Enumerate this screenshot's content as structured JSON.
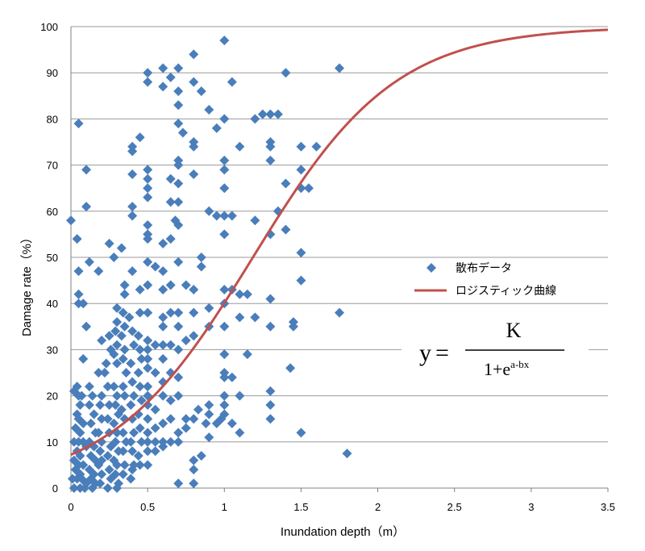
{
  "chart_data": {
    "type": "scatter",
    "xlabel": "Inundation depth（m）",
    "ylabel": "Damage rate（%）",
    "xlim": [
      0,
      3.5
    ],
    "ylim": [
      0,
      100
    ],
    "x_ticks": [
      "0",
      "0.5",
      "1",
      "1.5",
      "2",
      "2.5",
      "3",
      "3.5"
    ],
    "y_ticks": [
      "0",
      "10",
      "20",
      "30",
      "40",
      "50",
      "60",
      "70",
      "80",
      "90",
      "100"
    ],
    "grid": "horizontal",
    "legend_position": "right-middle",
    "colors": {
      "scatter": "#4a7ebb",
      "curve": "#c0504d",
      "grid": "#9a9a9a"
    },
    "series": [
      {
        "name": "散布データ",
        "kind": "scatter",
        "marker": "diamond",
        "points": [
          [
            0,
            58
          ],
          [
            0.02,
            21
          ],
          [
            0.05,
            79
          ],
          [
            0.04,
            54
          ],
          [
            0.05,
            47
          ],
          [
            0.05,
            42
          ],
          [
            0.05,
            40
          ],
          [
            0.08,
            40
          ],
          [
            0.1,
            69
          ],
          [
            0.1,
            61
          ],
          [
            0.1,
            35
          ],
          [
            0.08,
            28
          ],
          [
            0.12,
            49
          ],
          [
            0.04,
            22
          ],
          [
            0.05,
            20
          ],
          [
            0.07,
            20
          ],
          [
            0.06,
            18
          ],
          [
            0.04,
            16
          ],
          [
            0.05,
            15
          ],
          [
            0.08,
            14
          ],
          [
            0.03,
            13
          ],
          [
            0.06,
            12
          ],
          [
            0.02,
            10
          ],
          [
            0.05,
            10
          ],
          [
            0.08,
            10
          ],
          [
            0.1,
            9
          ],
          [
            0.04,
            8
          ],
          [
            0.06,
            7
          ],
          [
            0.02,
            6
          ],
          [
            0.05,
            5
          ],
          [
            0.08,
            5
          ],
          [
            0.03,
            4
          ],
          [
            0.06,
            3
          ],
          [
            0.01,
            2
          ],
          [
            0.04,
            2
          ],
          [
            0.07,
            2
          ],
          [
            0.1,
            1
          ],
          [
            0.02,
            0
          ],
          [
            0.06,
            0
          ],
          [
            0.09,
            0
          ],
          [
            0.12,
            22
          ],
          [
            0.14,
            20
          ],
          [
            0.12,
            18
          ],
          [
            0.15,
            16
          ],
          [
            0.13,
            14
          ],
          [
            0.16,
            12
          ],
          [
            0.12,
            10
          ],
          [
            0.15,
            9
          ],
          [
            0.13,
            7
          ],
          [
            0.16,
            6
          ],
          [
            0.12,
            4
          ],
          [
            0.15,
            3
          ],
          [
            0.13,
            2
          ],
          [
            0.16,
            1
          ],
          [
            0.14,
            0
          ],
          [
            0.18,
            47
          ],
          [
            0.2,
            32
          ],
          [
            0.18,
            25
          ],
          [
            0.2,
            20
          ],
          [
            0.19,
            18
          ],
          [
            0.2,
            15
          ],
          [
            0.18,
            12
          ],
          [
            0.2,
            10
          ],
          [
            0.19,
            8
          ],
          [
            0.2,
            6
          ],
          [
            0.18,
            5
          ],
          [
            0.2,
            3
          ],
          [
            0.19,
            1
          ],
          [
            0.23,
            27
          ],
          [
            0.22,
            25
          ],
          [
            0.24,
            22
          ],
          [
            0.25,
            53
          ],
          [
            0.25,
            33
          ],
          [
            0.26,
            30
          ],
          [
            0.25,
            18
          ],
          [
            0.24,
            15
          ],
          [
            0.25,
            12
          ],
          [
            0.26,
            9
          ],
          [
            0.24,
            7
          ],
          [
            0.25,
            4
          ],
          [
            0.26,
            2
          ],
          [
            0.24,
            0
          ],
          [
            0.28,
            50
          ],
          [
            0.3,
            39
          ],
          [
            0.3,
            36
          ],
          [
            0.29,
            34
          ],
          [
            0.3,
            31
          ],
          [
            0.28,
            29
          ],
          [
            0.3,
            27
          ],
          [
            0.28,
            22
          ],
          [
            0.3,
            20
          ],
          [
            0.29,
            18
          ],
          [
            0.31,
            16
          ],
          [
            0.28,
            14
          ],
          [
            0.3,
            12
          ],
          [
            0.29,
            10
          ],
          [
            0.31,
            8
          ],
          [
            0.28,
            6
          ],
          [
            0.3,
            5
          ],
          [
            0.29,
            3
          ],
          [
            0.31,
            1
          ],
          [
            0.3,
            0
          ],
          [
            0.33,
            52
          ],
          [
            0.35,
            44
          ],
          [
            0.35,
            42
          ],
          [
            0.34,
            38
          ],
          [
            0.35,
            35
          ],
          [
            0.33,
            33
          ],
          [
            0.35,
            30
          ],
          [
            0.34,
            28
          ],
          [
            0.36,
            25
          ],
          [
            0.34,
            22
          ],
          [
            0.35,
            20
          ],
          [
            0.33,
            17
          ],
          [
            0.35,
            15
          ],
          [
            0.34,
            12
          ],
          [
            0.36,
            10
          ],
          [
            0.34,
            8
          ],
          [
            0.35,
            5
          ],
          [
            0.34,
            3
          ],
          [
            0.4,
            74
          ],
          [
            0.4,
            73
          ],
          [
            0.4,
            68
          ],
          [
            0.4,
            61
          ],
          [
            0.4,
            59
          ],
          [
            0.4,
            47
          ],
          [
            0.38,
            37
          ],
          [
            0.4,
            34
          ],
          [
            0.41,
            31
          ],
          [
            0.39,
            27
          ],
          [
            0.4,
            23
          ],
          [
            0.41,
            20
          ],
          [
            0.39,
            18
          ],
          [
            0.4,
            15
          ],
          [
            0.41,
            12
          ],
          [
            0.39,
            10
          ],
          [
            0.4,
            8
          ],
          [
            0.41,
            5
          ],
          [
            0.4,
            4
          ],
          [
            0.39,
            2
          ],
          [
            0.45,
            76
          ],
          [
            0.45,
            43
          ],
          [
            0.45,
            38
          ],
          [
            0.44,
            33
          ],
          [
            0.45,
            30
          ],
          [
            0.46,
            28
          ],
          [
            0.44,
            25
          ],
          [
            0.45,
            22
          ],
          [
            0.46,
            19
          ],
          [
            0.44,
            16
          ],
          [
            0.45,
            13
          ],
          [
            0.46,
            10
          ],
          [
            0.44,
            7
          ],
          [
            0.45,
            5
          ],
          [
            0.5,
            90
          ],
          [
            0.5,
            88
          ],
          [
            0.5,
            69
          ],
          [
            0.5,
            67
          ],
          [
            0.5,
            65
          ],
          [
            0.5,
            63
          ],
          [
            0.5,
            57
          ],
          [
            0.5,
            55
          ],
          [
            0.5,
            54
          ],
          [
            0.5,
            49
          ],
          [
            0.5,
            44
          ],
          [
            0.5,
            38
          ],
          [
            0.5,
            32
          ],
          [
            0.5,
            30
          ],
          [
            0.5,
            28
          ],
          [
            0.5,
            26
          ],
          [
            0.5,
            22
          ],
          [
            0.5,
            20
          ],
          [
            0.5,
            18
          ],
          [
            0.5,
            15
          ],
          [
            0.5,
            12
          ],
          [
            0.5,
            10
          ],
          [
            0.5,
            8
          ],
          [
            0.5,
            5
          ],
          [
            0.55,
            48
          ],
          [
            0.55,
            31
          ],
          [
            0.55,
            25
          ],
          [
            0.55,
            17
          ],
          [
            0.55,
            13
          ],
          [
            0.55,
            10
          ],
          [
            0.55,
            8
          ],
          [
            0.6,
            91
          ],
          [
            0.6,
            87
          ],
          [
            0.6,
            53
          ],
          [
            0.6,
            47
          ],
          [
            0.6,
            43
          ],
          [
            0.6,
            37
          ],
          [
            0.6,
            35
          ],
          [
            0.6,
            31
          ],
          [
            0.6,
            28
          ],
          [
            0.6,
            23
          ],
          [
            0.6,
            20
          ],
          [
            0.6,
            14
          ],
          [
            0.6,
            10
          ],
          [
            0.6,
            9
          ],
          [
            0.65,
            89
          ],
          [
            0.65,
            67
          ],
          [
            0.65,
            62
          ],
          [
            0.65,
            54
          ],
          [
            0.65,
            44
          ],
          [
            0.65,
            38
          ],
          [
            0.65,
            31
          ],
          [
            0.65,
            25
          ],
          [
            0.65,
            19
          ],
          [
            0.65,
            15
          ],
          [
            0.65,
            10
          ],
          [
            0.68,
            58
          ],
          [
            0.7,
            91
          ],
          [
            0.7,
            86
          ],
          [
            0.7,
            83
          ],
          [
            0.7,
            79
          ],
          [
            0.7,
            71
          ],
          [
            0.7,
            70
          ],
          [
            0.7,
            66
          ],
          [
            0.7,
            62
          ],
          [
            0.7,
            57
          ],
          [
            0.7,
            49
          ],
          [
            0.7,
            38
          ],
          [
            0.7,
            35
          ],
          [
            0.7,
            30
          ],
          [
            0.7,
            24
          ],
          [
            0.7,
            20
          ],
          [
            0.7,
            12
          ],
          [
            0.7,
            10
          ],
          [
            0.7,
            1
          ],
          [
            0.73,
            77
          ],
          [
            0.75,
            44
          ],
          [
            0.75,
            32
          ],
          [
            0.75,
            15
          ],
          [
            0.75,
            13
          ],
          [
            0.8,
            94
          ],
          [
            0.8,
            88
          ],
          [
            0.8,
            75
          ],
          [
            0.8,
            74
          ],
          [
            0.8,
            68
          ],
          [
            0.8,
            43
          ],
          [
            0.8,
            38
          ],
          [
            0.8,
            33
          ],
          [
            0.8,
            15
          ],
          [
            0.8,
            6
          ],
          [
            0.8,
            4
          ],
          [
            0.8,
            1
          ],
          [
            0.83,
            17
          ],
          [
            0.85,
            86
          ],
          [
            0.85,
            50
          ],
          [
            0.85,
            48
          ],
          [
            0.85,
            7
          ],
          [
            0.88,
            14
          ],
          [
            0.9,
            82
          ],
          [
            0.9,
            60
          ],
          [
            0.9,
            39
          ],
          [
            0.9,
            35
          ],
          [
            0.9,
            18
          ],
          [
            0.9,
            16
          ],
          [
            0.9,
            11
          ],
          [
            0.95,
            78
          ],
          [
            0.95,
            59
          ],
          [
            0.95,
            14
          ],
          [
            0.98,
            15
          ],
          [
            1,
            97
          ],
          [
            1,
            80
          ],
          [
            1,
            71
          ],
          [
            1,
            69
          ],
          [
            1,
            65
          ],
          [
            1,
            59
          ],
          [
            1,
            55
          ],
          [
            1,
            43
          ],
          [
            1,
            40
          ],
          [
            1,
            35
          ],
          [
            1,
            29
          ],
          [
            1,
            25
          ],
          [
            1,
            24
          ],
          [
            1,
            20
          ],
          [
            1,
            18
          ],
          [
            1,
            16
          ],
          [
            1.05,
            88
          ],
          [
            1.05,
            59
          ],
          [
            1.05,
            43
          ],
          [
            1.05,
            24
          ],
          [
            1.05,
            14
          ],
          [
            1.1,
            74
          ],
          [
            1.1,
            42
          ],
          [
            1.1,
            37
          ],
          [
            1.1,
            20
          ],
          [
            1.1,
            12
          ],
          [
            1.15,
            42
          ],
          [
            1.15,
            29
          ],
          [
            1.2,
            80
          ],
          [
            1.2,
            58
          ],
          [
            1.2,
            37
          ],
          [
            1.25,
            81
          ],
          [
            1.3,
            81
          ],
          [
            1.3,
            75
          ],
          [
            1.3,
            74
          ],
          [
            1.3,
            71
          ],
          [
            1.3,
            55
          ],
          [
            1.3,
            41
          ],
          [
            1.3,
            35
          ],
          [
            1.3,
            21
          ],
          [
            1.3,
            18
          ],
          [
            1.3,
            15
          ],
          [
            1.35,
            81
          ],
          [
            1.35,
            60
          ],
          [
            1.4,
            90
          ],
          [
            1.4,
            66
          ],
          [
            1.4,
            56
          ],
          [
            1.43,
            26
          ],
          [
            1.45,
            36
          ],
          [
            1.45,
            35
          ],
          [
            1.5,
            74
          ],
          [
            1.5,
            69
          ],
          [
            1.5,
            65
          ],
          [
            1.5,
            51
          ],
          [
            1.5,
            45
          ],
          [
            1.5,
            12
          ],
          [
            1.55,
            65
          ],
          [
            1.6,
            74
          ],
          [
            1.75,
            91
          ],
          [
            1.75,
            38
          ],
          [
            1.8,
            7.5
          ]
        ]
      },
      {
        "name": "ロジスティック曲線",
        "kind": "line",
        "model": "logistic",
        "K": 100,
        "a": 2.55,
        "b": 2.15
      }
    ],
    "annotations": {
      "formula_lhs": "y",
      "formula_eq": "=",
      "formula_numerator": "K",
      "formula_denominator_base": "1+e",
      "formula_denominator_exp": "a-bx"
    }
  }
}
